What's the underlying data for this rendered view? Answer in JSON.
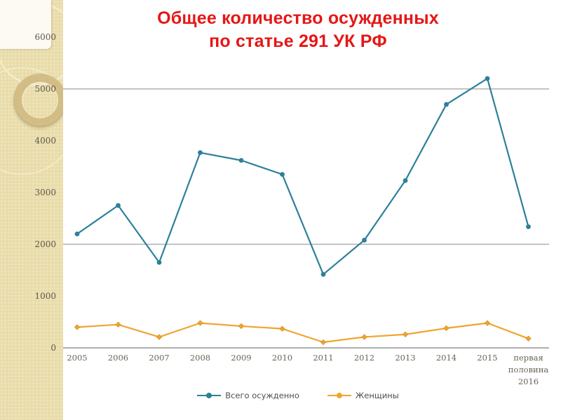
{
  "slide": {
    "title_line1": "Общее количество осужденных",
    "title_line2": "по статье 291 УК РФ",
    "title_color": "#e61616"
  },
  "decor": {
    "sidebar_color": "#e9dcaa",
    "ring_color": "#d2bd85",
    "corner_card_color": "#fcfaf2"
  },
  "chart_data": {
    "type": "line",
    "title": "Общее количество осужденных по статье 291 УК РФ",
    "categories": [
      "2005",
      "2006",
      "2007",
      "2008",
      "2009",
      "2010",
      "2011",
      "2012",
      "2013",
      "2014",
      "2015",
      "первая половина 2016"
    ],
    "series": [
      {
        "name": "Всего осужденно",
        "color": "#2e8099",
        "marker": "circle",
        "values": [
          2200,
          2750,
          1650,
          3770,
          3620,
          3350,
          1420,
          2080,
          3230,
          4700,
          5200,
          2340
        ]
      },
      {
        "name": "Женщины",
        "color": "#efa52f",
        "marker": "diamond",
        "values": [
          400,
          450,
          210,
          480,
          420,
          370,
          110,
          210,
          260,
          380,
          480,
          180
        ]
      }
    ],
    "xlabel": "",
    "ylabel": "",
    "ylim": [
      0,
      6000
    ],
    "y_ticks": [
      6000,
      5000,
      4000,
      3000,
      2000,
      1000,
      0
    ],
    "gridline_values": [
      5000,
      2000
    ],
    "grid": "horizontal-partial",
    "gridline_color": "#8a8a8a",
    "axis_line_color": "#7d7d7d",
    "legend_position": "bottom"
  }
}
